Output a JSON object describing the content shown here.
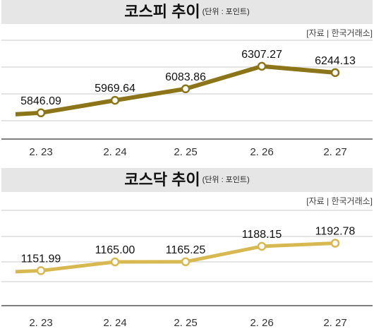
{
  "charts": [
    {
      "header": {
        "title": "코스피 추이",
        "unit": "(단위 : 포인트)"
      },
      "source": "[자료 | 한국거래소]",
      "color": "#8c7518"
    },
    {
      "header": {
        "title": "코스닥 추이",
        "unit": "(단위 : 포인트)"
      },
      "source": "[자료 | 한국거래소]",
      "color": "#d8b850"
    }
  ],
  "chart_data": [
    {
      "type": "line",
      "title": "코스피 추이",
      "categories": [
        "2. 23",
        "2. 24",
        "2. 25",
        "2. 26",
        "2. 27"
      ],
      "values": [
        5846.09,
        5969.64,
        6083.86,
        6307.27,
        6244.13
      ],
      "labels": [
        "5846.09",
        "5969.64",
        "6083.86",
        "6307.27",
        "6244.13"
      ],
      "ylim": [
        5600,
        6600
      ],
      "grid": true
    },
    {
      "type": "line",
      "title": "코스닥 추이",
      "categories": [
        "2. 23",
        "2. 24",
        "2. 25",
        "2. 26",
        "2. 27"
      ],
      "values": [
        1151.99,
        1165.0,
        1165.25,
        1188.15,
        1192.78
      ],
      "labels": [
        "1151.99",
        "1165.00",
        "1165.25",
        "1188.15",
        "1192.78"
      ],
      "ylim": [
        1100,
        1250
      ],
      "grid": true
    }
  ]
}
